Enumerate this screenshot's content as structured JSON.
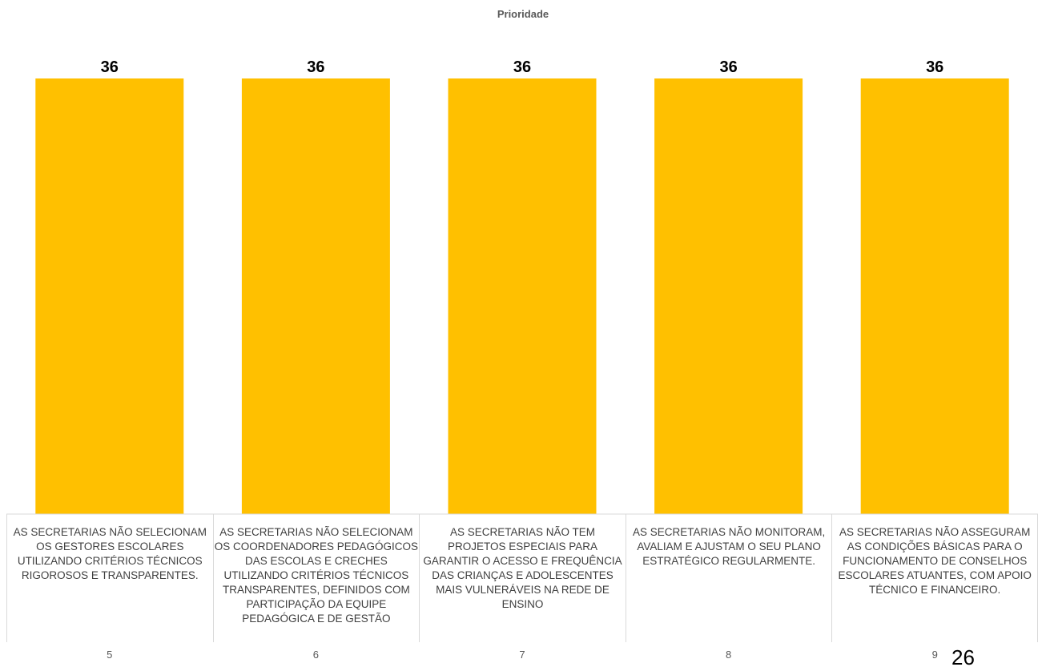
{
  "page_number": "26",
  "chart_data": {
    "type": "bar",
    "title": "Prioridade",
    "categories": [
      "AS SECRETARIAS NÃO SELECIONAM OS GESTORES ESCOLARES UTILIZANDO CRITÉRIOS TÉCNICOS RIGOROSOS E TRANSPARENTES.",
      "AS SECRETARIAS NÃO SELECIONAM OS COORDENADORES PEDAGÓGICOS DAS ESCOLAS E CRECHES UTILIZANDO CRITÉRIOS TÉCNICOS TRANSPARENTES, DEFINIDOS COM PARTICIPAÇÃO DA EQUIPE PEDAGÓGICA E DE GESTÃO",
      "AS SECRETARIAS NÃO TEM PROJETOS ESPECIAIS PARA GARANTIR O ACESSO E FREQUÊNCIA DAS CRIANÇAS E ADOLESCENTES MAIS VULNERÁVEIS NA REDE DE ENSINO",
      "AS SECRETARIAS NÃO MONITORAM, AVALIAM E AJUSTAM O SEU  PLANO ESTRATÉGICO REGULARMENTE.",
      "AS SECRETARIAS NÃO ASSEGURAM AS CONDIÇÕES BÁSICAS PARA O FUNCIONAMENTO DE CONSELHOS ESCOLARES ATUANTES, COM APOIO TÉCNICO E FINANCEIRO."
    ],
    "category_numbers": [
      "5",
      "6",
      "7",
      "8",
      "9"
    ],
    "values": [
      36,
      36,
      36,
      36,
      36
    ],
    "data_labels": [
      "36",
      "36",
      "36",
      "36",
      "36"
    ],
    "ylim": [
      0,
      36
    ],
    "bar_color": "#FFC000",
    "grid": false,
    "legend": "none"
  }
}
